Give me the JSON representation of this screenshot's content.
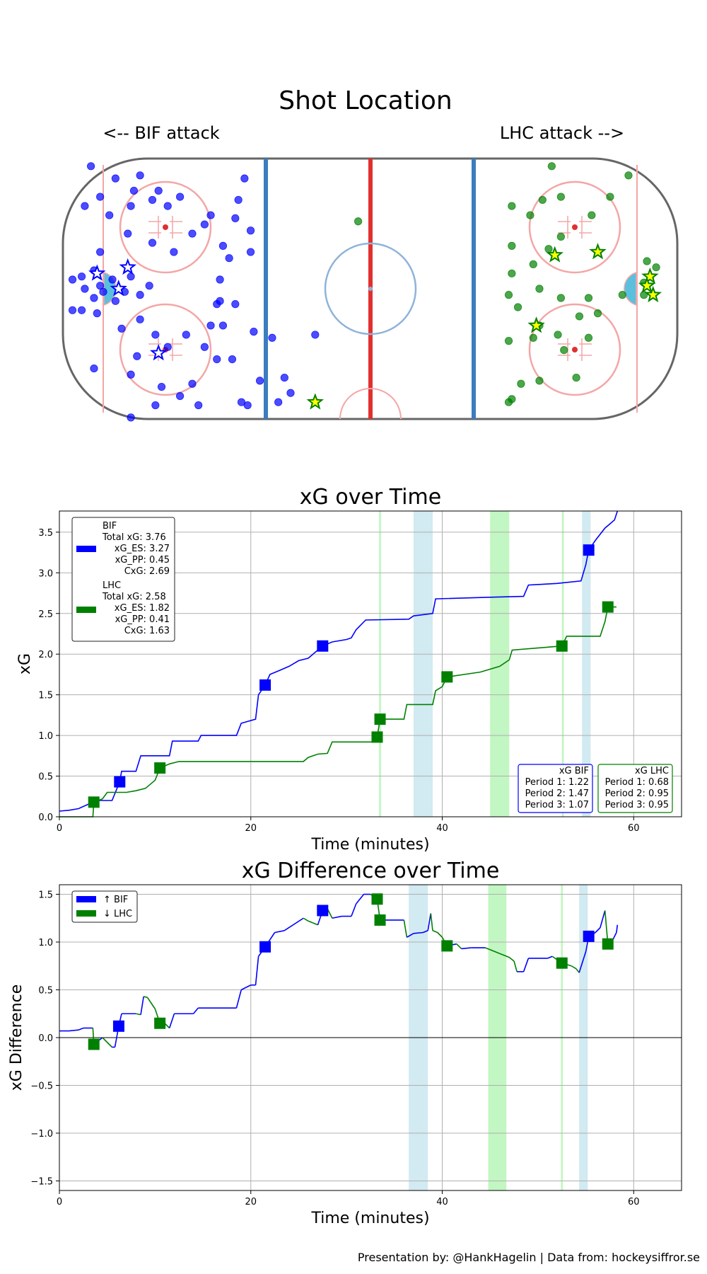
{
  "colors": {
    "bif": "#0000ff",
    "lhc": "#008000",
    "pp_bif": "#add8e6",
    "pp_lhc": "#90ee90",
    "goal_fill": "#ffff00"
  },
  "rink": {
    "title": "Shot Location",
    "left_label": "<-- BIF attack",
    "right_label": "LHC attack -->",
    "bif_shots": [
      [
        -91,
        40
      ],
      [
        -88,
        30
      ],
      [
        -93,
        27
      ],
      [
        -85,
        24
      ],
      [
        -78,
        27
      ],
      [
        -71,
        29
      ],
      [
        -77,
        32
      ],
      [
        -83,
        36
      ],
      [
        -75,
        37
      ],
      [
        -69,
        32
      ],
      [
        -66,
        27
      ],
      [
        -62,
        30
      ],
      [
        -58,
        18
      ],
      [
        -64,
        12
      ],
      [
        -71,
        15
      ],
      [
        -79,
        18
      ],
      [
        -88,
        12
      ],
      [
        -90,
        6
      ],
      [
        -94,
        4
      ],
      [
        -97,
        3
      ],
      [
        -93,
        0
      ],
      [
        -87,
        -1
      ],
      [
        -83,
        -4
      ],
      [
        -80,
        -1
      ],
      [
        -75,
        -2
      ],
      [
        -72,
        1
      ],
      [
        -78,
        4
      ],
      [
        -84,
        3
      ],
      [
        -88,
        1
      ],
      [
        -90,
        -3
      ],
      [
        -94,
        -7
      ],
      [
        -97,
        -7
      ],
      [
        -89,
        -8
      ],
      [
        -81,
        -13
      ],
      [
        -75,
        -10
      ],
      [
        -70,
        -15
      ],
      [
        -66,
        -19
      ],
      [
        -60,
        -15
      ],
      [
        -54,
        -19
      ],
      [
        -50,
        -23
      ],
      [
        -45,
        -23
      ],
      [
        -48,
        -12
      ],
      [
        -52,
        -12
      ],
      [
        -50,
        -5
      ],
      [
        -49,
        3
      ],
      [
        -48,
        14
      ],
      [
        -44,
        23
      ],
      [
        -41,
        36
      ],
      [
        -43,
        29
      ],
      [
        -44,
        -5
      ],
      [
        -38,
        -14
      ],
      [
        -32,
        -16
      ],
      [
        -42,
        -37
      ],
      [
        -58,
        -31
      ],
      [
        -62,
        -35
      ],
      [
        -56,
        -38
      ],
      [
        -68,
        -32
      ],
      [
        -70,
        -38
      ],
      [
        -78,
        -42
      ],
      [
        -78,
        -28
      ],
      [
        -90,
        -26
      ],
      [
        -76,
        -22
      ],
      [
        -28,
        -29
      ],
      [
        -36,
        -30
      ],
      [
        -26,
        -34
      ],
      [
        -30,
        -37
      ],
      [
        -40,
        -38
      ],
      [
        -18,
        -15
      ],
      [
        -39,
        12
      ],
      [
        -39,
        19
      ],
      [
        -46,
        10
      ],
      [
        -52,
        24
      ],
      [
        -54,
        21
      ],
      [
        -49,
        -4
      ]
    ],
    "bif_goals": [
      [
        -89,
        5
      ],
      [
        -82,
        0
      ],
      [
        -79,
        7
      ],
      [
        -69,
        -21
      ]
    ],
    "lhc_shots": [
      [
        84,
        37
      ],
      [
        78,
        30
      ],
      [
        72,
        24
      ],
      [
        59,
        40
      ],
      [
        52,
        24
      ],
      [
        62,
        30
      ],
      [
        56,
        29
      ],
      [
        46,
        27
      ],
      [
        46,
        14
      ],
      [
        53,
        8
      ],
      [
        45,
        -2
      ],
      [
        55,
        -12
      ],
      [
        45,
        -17
      ],
      [
        53,
        -16
      ],
      [
        61,
        -15
      ],
      [
        71,
        -16
      ],
      [
        68,
        -9
      ],
      [
        63,
        -20
      ],
      [
        55,
        -30
      ],
      [
        46,
        -36
      ],
      [
        45,
        -37
      ],
      [
        49,
        -31
      ],
      [
        67,
        -29
      ],
      [
        62,
        -3
      ],
      [
        71,
        -3
      ],
      [
        82,
        -2
      ],
      [
        89,
        -2
      ],
      [
        92,
        -2
      ],
      [
        89,
        2
      ],
      [
        90,
        9
      ],
      [
        93,
        7
      ],
      [
        46,
        5
      ],
      [
        48,
        -6
      ],
      [
        74,
        -8
      ],
      [
        58,
        13
      ],
      [
        62,
        17
      ],
      [
        55,
        0
      ],
      [
        -4,
        22
      ]
    ],
    "lhc_goals": [
      [
        91,
        4
      ],
      [
        92,
        -2
      ],
      [
        90,
        1
      ],
      [
        74,
        12
      ],
      [
        54,
        -12
      ],
      [
        60,
        11
      ],
      [
        -18,
        -37
      ]
    ]
  },
  "xg_time": {
    "title": "xG over Time",
    "xlabel": "Time (minutes)",
    "ylabel": "xG",
    "xlim": [
      0,
      65
    ],
    "ylim": [
      0,
      3.76
    ],
    "xticks": [
      "0",
      "20",
      "40",
      "60"
    ],
    "yticks": [
      "0.0",
      "0.5",
      "1.0",
      "1.5",
      "2.0",
      "2.5",
      "3.0",
      "3.5"
    ],
    "pp_bands": [
      [
        37.0,
        39.0,
        "bif"
      ],
      [
        45.0,
        47.0,
        "lhc"
      ],
      [
        54.6,
        55.5,
        "bif"
      ],
      [
        33.4,
        33.6,
        "lhc"
      ],
      [
        52.5,
        52.7,
        "lhc"
      ]
    ],
    "series": [
      {
        "name": "BIF",
        "team": "bif",
        "points": [
          [
            0,
            0.07
          ],
          [
            1,
            0.08
          ],
          [
            2,
            0.1
          ],
          [
            3.5,
            0.18
          ],
          [
            4,
            0.2
          ],
          [
            5.5,
            0.2
          ],
          [
            6.3,
            0.43
          ],
          [
            6.5,
            0.56
          ],
          [
            8,
            0.56
          ],
          [
            8.5,
            0.75
          ],
          [
            11.5,
            0.75
          ],
          [
            11.8,
            0.93
          ],
          [
            14.5,
            0.93
          ],
          [
            14.8,
            1.0
          ],
          [
            18.5,
            1.0
          ],
          [
            19,
            1.15
          ],
          [
            20.5,
            1.2
          ],
          [
            20.8,
            1.5
          ],
          [
            21.5,
            1.62
          ],
          [
            22,
            1.75
          ],
          [
            23,
            1.8
          ],
          [
            24,
            1.85
          ],
          [
            25,
            1.92
          ],
          [
            26,
            1.95
          ],
          [
            27.5,
            2.1
          ],
          [
            28.5,
            2.15
          ],
          [
            30,
            2.18
          ],
          [
            30.5,
            2.2
          ],
          [
            31,
            2.3
          ],
          [
            32,
            2.42
          ],
          [
            36.5,
            2.43
          ],
          [
            37,
            2.47
          ],
          [
            39,
            2.5
          ],
          [
            39.3,
            2.68
          ],
          [
            45,
            2.7
          ],
          [
            48.5,
            2.71
          ],
          [
            49,
            2.85
          ],
          [
            52,
            2.87
          ],
          [
            54.5,
            2.9
          ],
          [
            55,
            3.1
          ],
          [
            55.3,
            3.28
          ],
          [
            56,
            3.4
          ],
          [
            57,
            3.55
          ],
          [
            57.5,
            3.6
          ],
          [
            58,
            3.65
          ],
          [
            58.3,
            3.76
          ]
        ]
      },
      {
        "name": "LHC",
        "team": "lhc",
        "points": [
          [
            0,
            0.0
          ],
          [
            3.5,
            0.0
          ],
          [
            3.6,
            0.18
          ],
          [
            4.5,
            0.22
          ],
          [
            5,
            0.3
          ],
          [
            7,
            0.3
          ],
          [
            8,
            0.32
          ],
          [
            9,
            0.35
          ],
          [
            10,
            0.45
          ],
          [
            10.5,
            0.6
          ],
          [
            11.5,
            0.65
          ],
          [
            12.5,
            0.68
          ],
          [
            20,
            0.68
          ],
          [
            25.5,
            0.68
          ],
          [
            26,
            0.73
          ],
          [
            27,
            0.77
          ],
          [
            28,
            0.78
          ],
          [
            28.5,
            0.92
          ],
          [
            33,
            0.92
          ],
          [
            33.2,
            0.98
          ],
          [
            33.5,
            1.2
          ],
          [
            36,
            1.2
          ],
          [
            36.3,
            1.38
          ],
          [
            39,
            1.38
          ],
          [
            39.3,
            1.55
          ],
          [
            40,
            1.6
          ],
          [
            40.5,
            1.72
          ],
          [
            44,
            1.78
          ],
          [
            46,
            1.85
          ],
          [
            47,
            1.93
          ],
          [
            47.3,
            2.05
          ],
          [
            52.5,
            2.1
          ],
          [
            53,
            2.22
          ],
          [
            56.5,
            2.22
          ],
          [
            57,
            2.4
          ],
          [
            57.3,
            2.58
          ],
          [
            58.2,
            2.58
          ]
        ]
      }
    ],
    "bif_markers": [
      [
        6.3,
        0.43
      ],
      [
        21.5,
        1.62
      ],
      [
        27.5,
        2.1
      ],
      [
        55.3,
        3.28
      ]
    ],
    "lhc_markers": [
      [
        3.6,
        0.18
      ],
      [
        10.5,
        0.6
      ],
      [
        33.2,
        0.98
      ],
      [
        33.5,
        1.2
      ],
      [
        40.5,
        1.72
      ],
      [
        52.5,
        2.1
      ],
      [
        57.3,
        2.58
      ]
    ],
    "legend": {
      "bif": [
        "BIF",
        "Total xG: 3.76",
        "xG_ES: 3.27",
        "xG_PP: 0.45",
        "CxG: 2.69"
      ],
      "lhc": [
        "LHC",
        "Total xG: 2.58",
        "xG_ES: 1.82",
        "xG_PP: 0.41",
        "CxG: 1.63"
      ]
    },
    "period_boxes": {
      "bif": [
        "xG BIF",
        "Period 1: 1.22",
        "Period 2: 1.47",
        "Period 3: 1.07"
      ],
      "lhc": [
        "xG LHC",
        "Period 1: 0.68",
        "Period 2: 0.95",
        "Period 3: 0.95"
      ]
    }
  },
  "xg_diff": {
    "title": "xG Difference over Time",
    "xlabel": "Time (minutes)",
    "ylabel": "xG Difference",
    "xlim": [
      0,
      65
    ],
    "ylim": [
      -1.6,
      1.6
    ],
    "xticks": [
      "0",
      "20",
      "40",
      "60"
    ],
    "yticks": [
      "−1.5",
      "−1.0",
      "−0.5",
      "0.0",
      "0.5",
      "1.0",
      "1.5"
    ],
    "pp_bands": [
      [
        36.5,
        38.5,
        "bif"
      ],
      [
        44.8,
        46.7,
        "lhc"
      ],
      [
        54.3,
        55.2,
        "bif"
      ],
      [
        52.4,
        52.6,
        "lhc"
      ]
    ],
    "points": [
      [
        0,
        0.07
      ],
      [
        1,
        0.07
      ],
      [
        2,
        0.08
      ],
      [
        2.5,
        0.1
      ],
      [
        3.5,
        0.1
      ],
      [
        3.6,
        -0.07
      ],
      [
        4.5,
        0.0
      ],
      [
        5.5,
        -0.1
      ],
      [
        5.8,
        -0.1
      ],
      [
        6.2,
        0.12
      ],
      [
        6.5,
        0.25
      ],
      [
        8,
        0.25
      ],
      [
        8.5,
        0.24
      ],
      [
        8.8,
        0.43
      ],
      [
        9.2,
        0.42
      ],
      [
        10,
        0.3
      ],
      [
        10.5,
        0.15
      ],
      [
        11,
        0.15
      ],
      [
        11.5,
        0.1
      ],
      [
        12,
        0.25
      ],
      [
        14,
        0.25
      ],
      [
        14.5,
        0.31
      ],
      [
        18.5,
        0.31
      ],
      [
        19,
        0.5
      ],
      [
        20,
        0.55
      ],
      [
        20.5,
        0.55
      ],
      [
        20.8,
        0.85
      ],
      [
        21.5,
        0.95
      ],
      [
        22.5,
        1.1
      ],
      [
        23.5,
        1.12
      ],
      [
        25.5,
        1.25
      ],
      [
        26,
        1.22
      ],
      [
        26.5,
        1.2
      ],
      [
        27,
        1.18
      ],
      [
        27.5,
        1.33
      ],
      [
        28,
        1.35
      ],
      [
        28.5,
        1.25
      ],
      [
        29.5,
        1.27
      ],
      [
        30.5,
        1.27
      ],
      [
        31,
        1.4
      ],
      [
        31.8,
        1.5
      ],
      [
        32.5,
        1.5
      ],
      [
        33.2,
        1.45
      ],
      [
        33.5,
        1.23
      ],
      [
        36,
        1.23
      ],
      [
        36.3,
        1.05
      ],
      [
        37,
        1.09
      ],
      [
        38,
        1.1
      ],
      [
        38.5,
        1.12
      ],
      [
        38.8,
        1.3
      ],
      [
        39,
        1.12
      ],
      [
        39.5,
        1.1
      ],
      [
        40,
        1.05
      ],
      [
        40.5,
        0.96
      ],
      [
        41.5,
        0.98
      ],
      [
        42,
        0.93
      ],
      [
        43,
        0.94
      ],
      [
        44.5,
        0.94
      ],
      [
        45,
        0.92
      ],
      [
        46,
        0.88
      ],
      [
        47,
        0.84
      ],
      [
        47.5,
        0.8
      ],
      [
        47.8,
        0.69
      ],
      [
        48.5,
        0.69
      ],
      [
        49,
        0.83
      ],
      [
        51,
        0.83
      ],
      [
        51.5,
        0.85
      ],
      [
        52.5,
        0.78
      ],
      [
        53.5,
        0.75
      ],
      [
        54,
        0.72
      ],
      [
        54.3,
        0.68
      ],
      [
        55,
        0.9
      ],
      [
        55.3,
        1.06
      ],
      [
        56,
        1.1
      ],
      [
        56.5,
        1.15
      ],
      [
        57,
        1.33
      ],
      [
        57.3,
        0.98
      ],
      [
        57.8,
        1.02
      ],
      [
        58.2,
        1.1
      ],
      [
        58.3,
        1.18
      ]
    ],
    "bif_markers": [
      [
        6.2,
        0.12
      ],
      [
        21.5,
        0.95
      ],
      [
        27.5,
        1.33
      ],
      [
        55.3,
        1.06
      ]
    ],
    "lhc_markers": [
      [
        3.6,
        -0.07
      ],
      [
        10.5,
        0.15
      ],
      [
        33.2,
        1.45
      ],
      [
        33.5,
        1.23
      ],
      [
        40.5,
        0.96
      ],
      [
        52.5,
        0.78
      ],
      [
        57.3,
        0.98
      ]
    ],
    "legend": [
      "↑ BIF",
      "↓ LHC"
    ]
  },
  "footer": "Presentation by: @HankHagelin | Data from: hockeysiffror.se"
}
